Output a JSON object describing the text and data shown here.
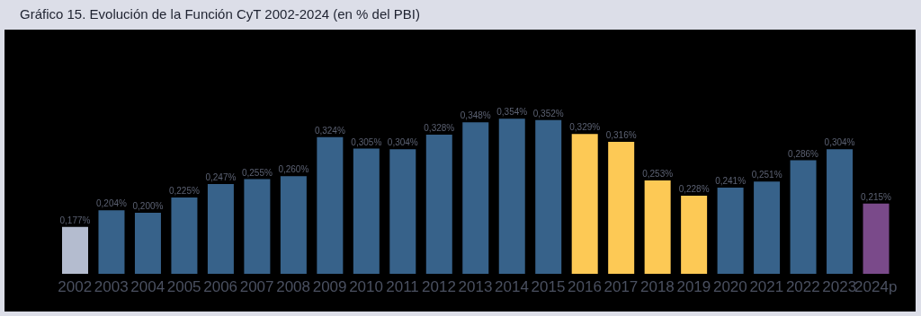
{
  "chart_data": {
    "type": "bar",
    "title": "Gráfico 15. Evolución de la Función CyT 2002-2024 (en % del PBI)",
    "categories": [
      "2002",
      "2003",
      "2004",
      "2005",
      "2006",
      "2007",
      "2008",
      "2009",
      "2010",
      "2011",
      "2012",
      "2013",
      "2014",
      "2015",
      "2016",
      "2017",
      "2018",
      "2019",
      "2020",
      "2021",
      "2022",
      "2023",
      "2024p"
    ],
    "values": [
      0.177,
      0.204,
      0.2,
      0.225,
      0.247,
      0.255,
      0.26,
      0.324,
      0.305,
      0.304,
      0.328,
      0.348,
      0.354,
      0.352,
      0.329,
      0.316,
      0.253,
      0.228,
      0.241,
      0.251,
      0.286,
      0.304,
      0.215
    ],
    "value_labels": [
      "0,177%",
      "0,204%",
      "0,200%",
      "0,225%",
      "0,247%",
      "0,255%",
      "0,260%",
      "0,324%",
      "0,305%",
      "0,304%",
      "0,328%",
      "0,348%",
      "0,354%",
      "0,352%",
      "0,329%",
      "0,316%",
      "0,253%",
      "0,228%",
      "0,241%",
      "0,251%",
      "0,286%",
      "0,304%",
      "0,215%"
    ],
    "colors": [
      "#b4bccf",
      "#37628a",
      "#37628a",
      "#37628a",
      "#37628a",
      "#37628a",
      "#37628a",
      "#37628a",
      "#37628a",
      "#37628a",
      "#37628a",
      "#37628a",
      "#37628a",
      "#37628a",
      "#fdc955",
      "#fdc955",
      "#fdc955",
      "#fdc955",
      "#37628a",
      "#37628a",
      "#37628a",
      "#37628a",
      "#7a4a8a"
    ],
    "ylim": [
      0.1,
      0.5
    ],
    "tick_labels": "x",
    "grid": false,
    "legend": false
  }
}
